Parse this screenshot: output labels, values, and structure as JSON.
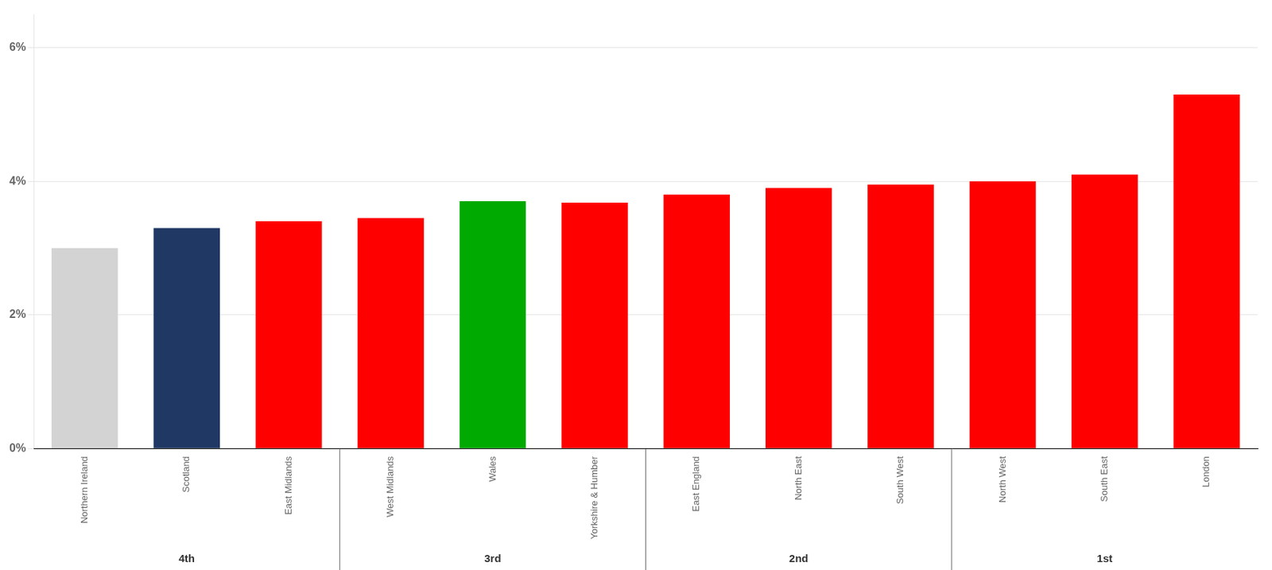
{
  "chart_data": {
    "type": "bar",
    "categories": [
      "Northern Ireland",
      "Scotland",
      "East Midlands",
      "West Midlands",
      "Wales",
      "Yorkshire & Humber",
      "East England",
      "North East",
      "South West",
      "North West",
      "South East",
      "London"
    ],
    "values": [
      0.03,
      0.033,
      0.034,
      0.0345,
      0.037,
      0.0368,
      0.038,
      0.039,
      0.0395,
      0.04,
      0.041,
      0.053
    ],
    "colors": [
      "#d3d3d3",
      "#1f3864",
      "#ff0000",
      "#ff0000",
      "#00aa00",
      "#ff0000",
      "#ff0000",
      "#ff0000",
      "#ff0000",
      "#ff0000",
      "#ff0000",
      "#ff0000"
    ],
    "annotations": [
      "4th",
      "3rd",
      "2nd",
      "1st"
    ],
    "ylim": [
      0,
      0.065
    ],
    "yticks": [
      {
        "value": 0,
        "label": "0%"
      },
      {
        "value": 0.02,
        "label": "2%"
      },
      {
        "value": 0.04,
        "label": "4%"
      },
      {
        "value": 0.06,
        "label": "6%"
      }
    ],
    "grid": true
  }
}
